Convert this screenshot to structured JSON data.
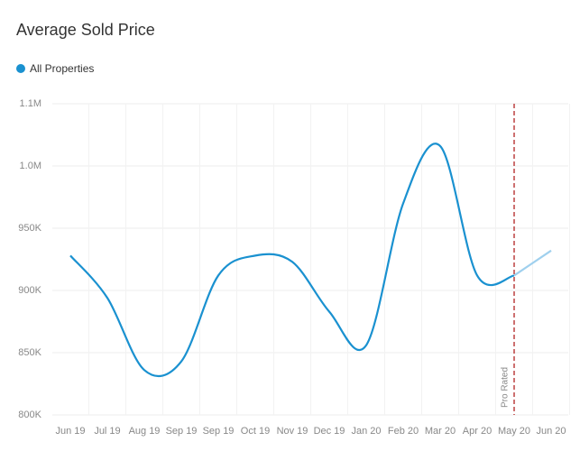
{
  "chart_data": {
    "type": "line",
    "title": "Average Sold Price",
    "categories": [
      "Jun 19",
      "Jul 19",
      "Aug 19",
      "Sep 19",
      "Sep 19",
      "Oct 19",
      "Nov 19",
      "Dec 19",
      "Jan 20",
      "Feb 20",
      "Mar 20",
      "Apr 20",
      "May 20",
      "Jun 20"
    ],
    "series": [
      {
        "name": "All Properties",
        "color": "#1a91d0",
        "projected_color": "#9fd0ee",
        "values": [
          928000,
          894000,
          836000,
          843000,
          912000,
          928000,
          923000,
          883000,
          856000,
          970000,
          1016000,
          912000,
          912000,
          932000
        ]
      }
    ],
    "ylim": [
      800000,
      1050000
    ],
    "yticks": [
      {
        "value": 800000,
        "label": "800K"
      },
      {
        "value": 850000,
        "label": "850K"
      },
      {
        "value": 900000,
        "label": "900K"
      },
      {
        "value": 950000,
        "label": "950K"
      },
      {
        "value": 1000000,
        "label": "1.0M"
      },
      {
        "value": 1050000,
        "label": "1.1M"
      }
    ],
    "grid": true,
    "annotation": {
      "text": "Pro Rated",
      "x": "May 20",
      "color": "#b22222"
    }
  }
}
